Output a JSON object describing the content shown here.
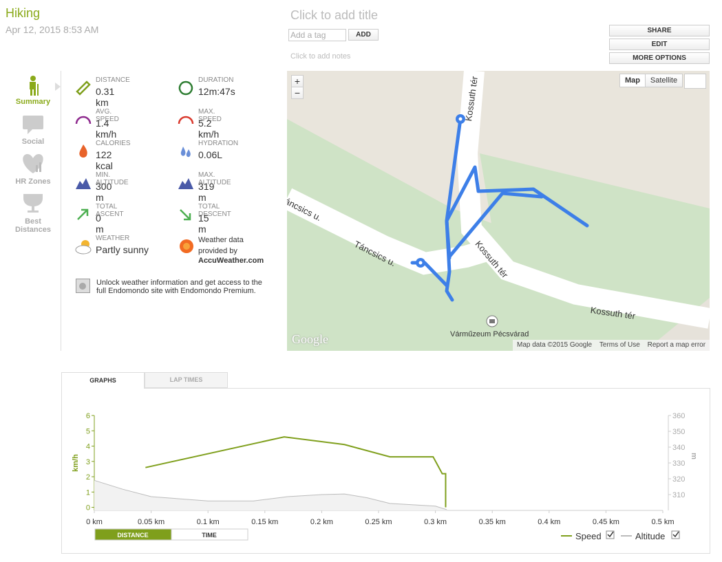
{
  "header": {
    "title": "Hiking",
    "date": "Apr 12, 2015 8:53 AM",
    "add_title": "Click to add title",
    "tag_placeholder": "Add a tag",
    "add_button": "ADD",
    "add_notes": "Click to add notes",
    "actions": [
      "SHARE",
      "EDIT",
      "MORE OPTIONS"
    ]
  },
  "nav": [
    "Summary",
    "Social",
    "HR Zones",
    "Best Distances"
  ],
  "stats": [
    {
      "label": "DISTANCE",
      "value": "0.31 km"
    },
    {
      "label": "DURATION",
      "value": "12m:47s"
    },
    {
      "label": "AVG. SPEED",
      "value": "1.4 km/h"
    },
    {
      "label": "MAX. SPEED",
      "value": "5.2 km/h"
    },
    {
      "label": "CALORIES",
      "value": "122 kcal"
    },
    {
      "label": "HYDRATION",
      "value": "0.06L"
    },
    {
      "label": "MIN. ALTITUDE",
      "value": "300 m"
    },
    {
      "label": "MAX. ALTITUDE",
      "value": "319 m"
    },
    {
      "label": "TOTAL ASCENT",
      "value": "0 m"
    },
    {
      "label": "TOTAL DESCENT",
      "value": "15 m"
    }
  ],
  "weather": {
    "label": "WEATHER",
    "value": "Partly sunny",
    "provider_text": "Weather data provided by",
    "provider": "AccuWeather.com"
  },
  "promo": "Unlock weather information and get access to the full Endomondo site with Endomondo Premium.",
  "map": {
    "zoom_in": "+",
    "zoom_out": "−",
    "types": [
      "Map",
      "Satellite"
    ],
    "streets": [
      "Kossuth tér",
      "Kossuth tér",
      "Kossuth tér",
      "Táncsics u.",
      "Táncsics u."
    ],
    "poi": "Várműzeum Pécsvárad",
    "logo": "Google",
    "footer": [
      "Map data ©2015 Google",
      "Terms of Use",
      "Report a map error"
    ]
  },
  "tabs": [
    "GRAPHS",
    "LAP TIMES"
  ],
  "chart_data": {
    "type": "line",
    "ylabel": "km/h",
    "y2label": "m",
    "xlim": [
      0,
      0.5
    ],
    "xticks": [
      {
        "value": 0,
        "label": "0 km"
      },
      {
        "value": 0.05,
        "label": "0.05 km"
      },
      {
        "value": 0.1,
        "label": "0.1 km"
      },
      {
        "value": 0.15,
        "label": "0.15 km"
      },
      {
        "value": 0.2,
        "label": "0.2 km"
      },
      {
        "value": 0.25,
        "label": "0.25 km"
      },
      {
        "value": 0.3,
        "label": "0.3 km"
      },
      {
        "value": 0.35,
        "label": "0.35 km"
      },
      {
        "value": 0.4,
        "label": "0.4 km"
      },
      {
        "value": 0.45,
        "label": "0.45 km"
      },
      {
        "value": 0.5,
        "label": "0.5 km"
      }
    ],
    "ylim": [
      -0.2,
      6
    ],
    "yticks": [
      0,
      1,
      2,
      3,
      4,
      5,
      6
    ],
    "y2lim": [
      300,
      360
    ],
    "y2ticks": [
      310,
      320,
      330,
      340,
      350,
      360
    ],
    "series": [
      {
        "name": "Speed",
        "color": "#7f9f1c",
        "x": [
          0.045,
          0.167,
          0.22,
          0.26,
          0.298,
          0.306,
          0.309,
          0.309
        ],
        "values": [
          2.6,
          4.6,
          4.1,
          3.3,
          3.3,
          2.2,
          2.2,
          0
        ]
      },
      {
        "name": "Altitude",
        "color": "#bbbbbb",
        "axis": "y2",
        "x": [
          0,
          0.025,
          0.05,
          0.1,
          0.14,
          0.17,
          0.2,
          0.22,
          0.24,
          0.26,
          0.3,
          0.31
        ],
        "values": [
          319,
          313.4,
          308.7,
          306,
          306,
          308.7,
          310,
          310.4,
          308,
          304.4,
          302.7,
          300.5
        ]
      }
    ],
    "modes": [
      "DISTANCE",
      "TIME"
    ]
  }
}
